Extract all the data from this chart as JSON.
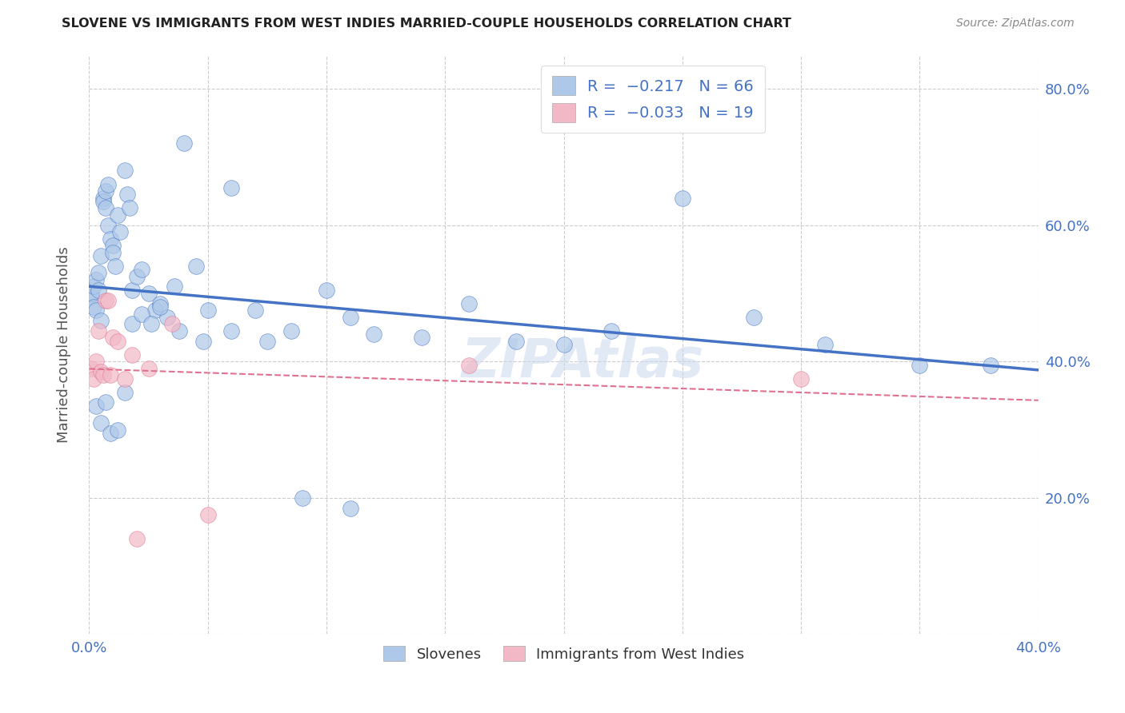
{
  "title": "SLOVENE VS IMMIGRANTS FROM WEST INDIES MARRIED-COUPLE HOUSEHOLDS CORRELATION CHART",
  "source": "Source: ZipAtlas.com",
  "ylabel": "Married-couple Households",
  "xmin": 0.0,
  "xmax": 0.4,
  "ymin": 0.0,
  "ymax": 0.85,
  "slovene_color": "#adc8e8",
  "slovene_line_color": "#4472c4",
  "westindies_color": "#f2b8c6",
  "westindies_line_color": "#e07090",
  "watermark": "ZIPAtlas",
  "background_color": "#ffffff",
  "slovene_x": [
    0.001,
    0.001,
    0.002,
    0.002,
    0.003,
    0.003,
    0.004,
    0.004,
    0.005,
    0.005,
    0.006,
    0.006,
    0.007,
    0.007,
    0.008,
    0.008,
    0.009,
    0.01,
    0.01,
    0.011,
    0.012,
    0.013,
    0.015,
    0.016,
    0.017,
    0.018,
    0.02,
    0.022,
    0.025,
    0.028,
    0.03,
    0.033,
    0.036,
    0.04,
    0.045,
    0.05,
    0.06,
    0.07,
    0.085,
    0.1,
    0.11,
    0.12,
    0.14,
    0.16,
    0.18,
    0.2,
    0.22,
    0.25,
    0.28,
    0.31,
    0.35,
    0.38,
    0.003,
    0.005,
    0.007,
    0.009,
    0.012,
    0.015,
    0.018,
    0.022,
    0.026,
    0.03,
    0.038,
    0.048,
    0.06,
    0.075,
    0.09,
    0.11
  ],
  "slovene_y": [
    0.495,
    0.5,
    0.48,
    0.51,
    0.52,
    0.475,
    0.505,
    0.53,
    0.46,
    0.555,
    0.64,
    0.635,
    0.65,
    0.625,
    0.66,
    0.6,
    0.58,
    0.57,
    0.56,
    0.54,
    0.615,
    0.59,
    0.68,
    0.645,
    0.625,
    0.505,
    0.525,
    0.535,
    0.5,
    0.475,
    0.485,
    0.465,
    0.51,
    0.72,
    0.54,
    0.475,
    0.655,
    0.475,
    0.445,
    0.505,
    0.465,
    0.44,
    0.435,
    0.485,
    0.43,
    0.425,
    0.445,
    0.64,
    0.465,
    0.425,
    0.395,
    0.395,
    0.335,
    0.31,
    0.34,
    0.295,
    0.3,
    0.355,
    0.455,
    0.47,
    0.455,
    0.48,
    0.445,
    0.43,
    0.445,
    0.43,
    0.2,
    0.185
  ],
  "westindies_x": [
    0.001,
    0.002,
    0.003,
    0.004,
    0.005,
    0.006,
    0.007,
    0.008,
    0.009,
    0.01,
    0.012,
    0.015,
    0.018,
    0.025,
    0.035,
    0.16,
    0.3,
    0.02,
    0.05
  ],
  "westindies_y": [
    0.39,
    0.375,
    0.4,
    0.445,
    0.385,
    0.38,
    0.49,
    0.49,
    0.38,
    0.435,
    0.43,
    0.375,
    0.41,
    0.39,
    0.455,
    0.395,
    0.375,
    0.14,
    0.175
  ]
}
